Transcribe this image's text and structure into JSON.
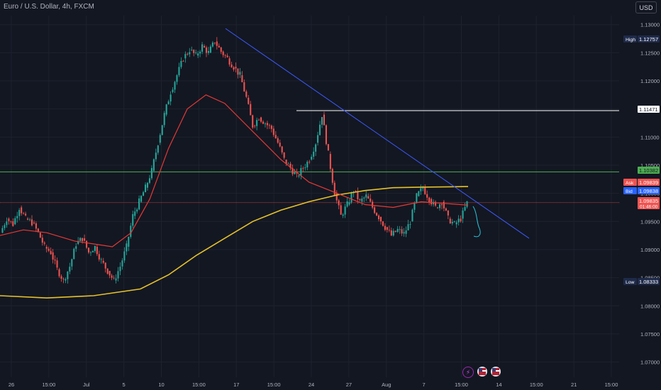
{
  "header": {
    "symbol_title": "Euro / U.S. Dollar, 4h, FXCM",
    "currency_button": "USD"
  },
  "bottom_icons": [
    "lightning-icon",
    "us-flag-event-icon",
    "us-flag-event-icon"
  ],
  "colors": {
    "background": "#131722",
    "grid": "#1e222d",
    "up_candle": "#26a69a",
    "down_candle": "#ef5350",
    "ma_fast": "#e53935",
    "ma_slow": "#e6c229",
    "trendline": "#3d5afe",
    "resistance_line": "#ffffff",
    "support_line": "#4caf50",
    "current_price_line": "#ef5350",
    "pen_stroke": "#26c6da"
  },
  "chart_data": {
    "type": "candlestick",
    "y_axis": {
      "ylim": [
        1.0673,
        1.1316
      ],
      "ticks": [
        "1.13000",
        "1.12500",
        "1.12000",
        "1.11500",
        "1.11000",
        "1.10500",
        "1.10000",
        "1.09500",
        "1.09000",
        "1.08500",
        "1.08000",
        "1.07500",
        "1.07000"
      ]
    },
    "x_axis": {
      "ticks": [
        "26",
        "15:00",
        "Jul",
        "5",
        "10",
        "15:00",
        "17",
        "15:00",
        "24",
        "27",
        "Aug",
        "7",
        "15:00",
        "14",
        "15:00",
        "21",
        "15:00"
      ]
    },
    "price_labels": [
      {
        "label": "High",
        "value": "1.12757"
      },
      {
        "label": "",
        "value": "1.11471"
      },
      {
        "label": "",
        "value": "1.10382"
      },
      {
        "label": "Ask",
        "value": "1.09839"
      },
      {
        "label": "Bid",
        "value": "1.09838"
      },
      {
        "label": "",
        "value": "1.09835",
        "sub": "01:46:00"
      },
      {
        "label": "Low",
        "value": "1.08333"
      }
    ],
    "horizontal_lines": {
      "resistance": 1.11471,
      "support": 1.10382,
      "current": 1.09835
    },
    "trendline": {
      "from": [
        0,
        1.1293
      ],
      "to": [
        1,
        1.092
      ]
    },
    "ohlc_path": [
      [
        1.093,
        1.0955
      ],
      [
        1.0955,
        1.0945
      ],
      [
        1.0945,
        1.0975
      ],
      [
        1.0975,
        1.0955
      ],
      [
        1.0955,
        1.0948
      ],
      [
        1.0948,
        1.093
      ],
      [
        1.093,
        1.0905
      ],
      [
        1.0905,
        1.0895
      ],
      [
        1.0895,
        1.0865
      ],
      [
        1.0865,
        1.0845
      ],
      [
        1.0845,
        1.087
      ],
      [
        1.087,
        1.091
      ],
      [
        1.091,
        1.092
      ],
      [
        1.092,
        1.0895
      ],
      [
        1.0895,
        1.0905
      ],
      [
        1.0905,
        1.088
      ],
      [
        1.088,
        1.0862
      ],
      [
        1.0862,
        1.0845
      ],
      [
        1.0845,
        1.087
      ],
      [
        1.087,
        1.0905
      ],
      [
        1.0905,
        1.096
      ],
      [
        1.096,
        1.0985
      ],
      [
        1.0985,
        1.101
      ],
      [
        1.101,
        1.104
      ],
      [
        1.104,
        1.109
      ],
      [
        1.109,
        1.114
      ],
      [
        1.114,
        1.118
      ],
      [
        1.118,
        1.121
      ],
      [
        1.121,
        1.124
      ],
      [
        1.124,
        1.1255
      ],
      [
        1.1255,
        1.1245
      ],
      [
        1.1245,
        1.1262
      ],
      [
        1.1262,
        1.125
      ],
      [
        1.125,
        1.127
      ],
      [
        1.127,
        1.1252
      ],
      [
        1.1252,
        1.124
      ],
      [
        1.124,
        1.1225
      ],
      [
        1.1225,
        1.121
      ],
      [
        1.121,
        1.117
      ],
      [
        1.117,
        1.112
      ],
      [
        1.112,
        1.1135
      ],
      [
        1.1135,
        1.1125
      ],
      [
        1.1125,
        1.1115
      ],
      [
        1.1115,
        1.109
      ],
      [
        1.109,
        1.106
      ],
      [
        1.106,
        1.1045
      ],
      [
        1.1045,
        1.103
      ],
      [
        1.103,
        1.1045
      ],
      [
        1.1045,
        1.106
      ],
      [
        1.106,
        1.109
      ],
      [
        1.109,
        1.114
      ],
      [
        1.114,
        1.107
      ],
      [
        1.107,
        1.1
      ],
      [
        1.1,
        1.096
      ],
      [
        1.096,
        1.098
      ],
      [
        1.098,
        1.1005
      ],
      [
        1.1005,
        1.0985
      ],
      [
        1.0985,
        1.0995
      ],
      [
        1.0995,
        1.0975
      ],
      [
        1.0975,
        1.0958
      ],
      [
        1.0958,
        1.094
      ],
      [
        1.094,
        1.0925
      ],
      [
        1.0925,
        1.0935
      ],
      [
        1.0935,
        1.0928
      ],
      [
        1.0928,
        1.095
      ],
      [
        1.095,
        1.0995
      ],
      [
        1.0995,
        1.101
      ],
      [
        1.101,
        1.099
      ],
      [
        1.099,
        1.0975
      ],
      [
        1.0975,
        1.0985
      ],
      [
        1.0985,
        1.0955
      ],
      [
        1.0955,
        1.0945
      ],
      [
        1.0945,
        1.0955
      ],
      [
        1.0955,
        1.0983
      ]
    ],
    "ma_fast": [
      [
        0.0,
        1.0925
      ],
      [
        0.05,
        1.0935
      ],
      [
        0.1,
        1.093
      ],
      [
        0.16,
        1.0915
      ],
      [
        0.2,
        1.091
      ],
      [
        0.24,
        1.0905
      ],
      [
        0.28,
        1.093
      ],
      [
        0.32,
        1.099
      ],
      [
        0.36,
        1.108
      ],
      [
        0.4,
        1.115
      ],
      [
        0.44,
        1.1175
      ],
      [
        0.48,
        1.116
      ],
      [
        0.54,
        1.111
      ],
      [
        0.6,
        1.106
      ],
      [
        0.66,
        1.102
      ],
      [
        0.72,
        1.1
      ],
      [
        0.78,
        1.098
      ],
      [
        0.84,
        1.0975
      ],
      [
        0.9,
        1.0985
      ],
      [
        1.0,
        1.0979
      ]
    ],
    "ma_slow": [
      [
        0.0,
        1.0818
      ],
      [
        0.1,
        1.0814
      ],
      [
        0.2,
        1.0818
      ],
      [
        0.3,
        1.083
      ],
      [
        0.36,
        1.0855
      ],
      [
        0.42,
        1.089
      ],
      [
        0.48,
        1.092
      ],
      [
        0.54,
        1.095
      ],
      [
        0.6,
        1.097
      ],
      [
        0.66,
        1.0985
      ],
      [
        0.72,
        1.0997
      ],
      [
        0.78,
        1.1005
      ],
      [
        0.84,
        1.101
      ],
      [
        0.9,
        1.1011
      ],
      [
        1.0,
        1.1012
      ]
    ]
  }
}
